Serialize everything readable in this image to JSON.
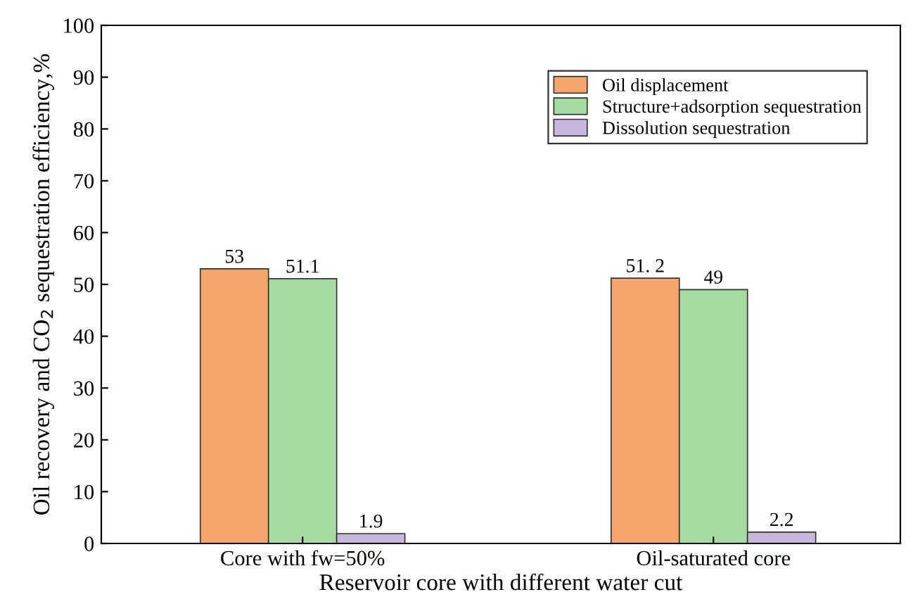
{
  "chart_data": {
    "type": "bar",
    "xlabel": "Reservoir core with different water cut",
    "ylabel": "Oil recovery and CO$_{2}$ sequestration efficiency,%",
    "categories": [
      "Core with fw=50%",
      "Oil-saturated core"
    ],
    "series": [
      {
        "name": "Oil displacement",
        "color": "#f4a66a",
        "values": [
          53,
          51.2
        ],
        "value_labels": [
          "53",
          "51. 2"
        ]
      },
      {
        "name": "Structure+adsorption sequestration",
        "color": "#a3dba0",
        "values": [
          51.1,
          49
        ],
        "value_labels": [
          "51.1",
          "49"
        ]
      },
      {
        "name": "Dissolution sequestration",
        "color": "#c6b6dc",
        "values": [
          1.9,
          2.2
        ],
        "value_labels": [
          "1.9",
          "2.2"
        ]
      }
    ],
    "ylim": [
      0,
      100
    ],
    "yticks": [
      0,
      10,
      20,
      30,
      40,
      50,
      60,
      70,
      80,
      90,
      100
    ],
    "legend": "top right",
    "grid": false
  }
}
